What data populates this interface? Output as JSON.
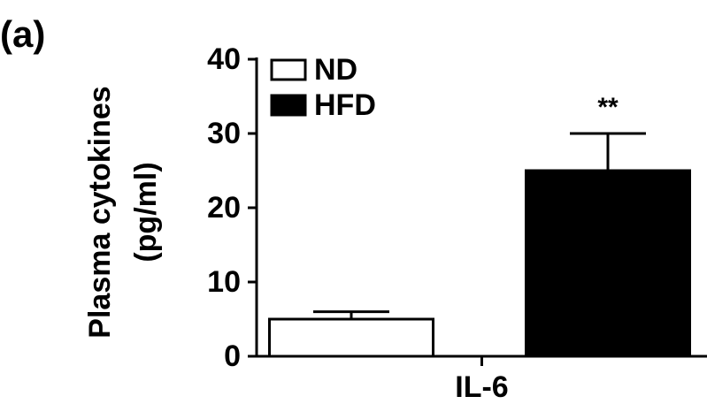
{
  "chart_data": {
    "type": "bar",
    "panel_label": "(a)",
    "ylabel": [
      "Plasma cytokines",
      "(pg/ml)"
    ],
    "categories": [
      "IL-6"
    ],
    "series": [
      {
        "name": "ND",
        "color": "#ffffff",
        "values": [
          5
        ],
        "errors": [
          1
        ]
      },
      {
        "name": "HFD",
        "color": "#000000",
        "values": [
          25
        ],
        "errors": [
          5
        ]
      }
    ],
    "annotation": "**",
    "ylim": [
      0,
      40
    ],
    "yticks": [
      0,
      10,
      20,
      30,
      40
    ],
    "grid": false,
    "legend": "upper left"
  }
}
